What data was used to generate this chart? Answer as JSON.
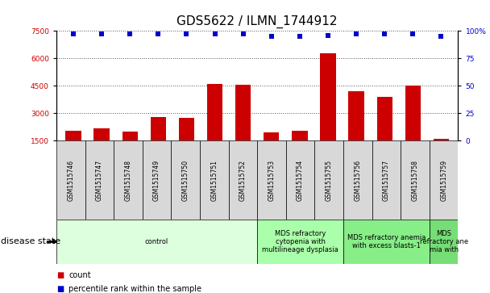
{
  "title": "GDS5622 / ILMN_1744912",
  "samples": [
    "GSM1515746",
    "GSM1515747",
    "GSM1515748",
    "GSM1515749",
    "GSM1515750",
    "GSM1515751",
    "GSM1515752",
    "GSM1515753",
    "GSM1515754",
    "GSM1515755",
    "GSM1515756",
    "GSM1515757",
    "GSM1515758",
    "GSM1515759"
  ],
  "counts": [
    2050,
    2150,
    2000,
    2800,
    2750,
    4600,
    4550,
    1950,
    2050,
    6250,
    4200,
    3900,
    4500,
    1580
  ],
  "percentile_ranks": [
    97,
    97,
    97,
    97,
    97,
    97,
    97,
    95,
    95,
    96,
    97,
    97,
    97,
    95
  ],
  "bar_color": "#cc0000",
  "dot_color": "#0000cc",
  "ylim_left": [
    1500,
    7500
  ],
  "ylim_right": [
    0,
    100
  ],
  "yticks_left": [
    1500,
    3000,
    4500,
    6000,
    7500
  ],
  "yticks_right": [
    0,
    25,
    50,
    75,
    100
  ],
  "grid_color": "#555555",
  "sample_box_color": "#d8d8d8",
  "bg_color": "#ffffff",
  "disease_groups": [
    {
      "label": "control",
      "start": 0,
      "end": 7,
      "color": "#ddffdd"
    },
    {
      "label": "MDS refractory\ncytopenia with\nmultilineage dysplasia",
      "start": 7,
      "end": 10,
      "color": "#aaffaa"
    },
    {
      "label": "MDS refractory anemia\nwith excess blasts-1",
      "start": 10,
      "end": 13,
      "color": "#88ee88"
    },
    {
      "label": "MDS\nrefractory ane\nmia with",
      "start": 13,
      "end": 14,
      "color": "#77dd77"
    }
  ],
  "title_fontsize": 11,
  "tick_fontsize": 6.5,
  "sample_fontsize": 5.5,
  "disease_fontsize": 6,
  "legend_fontsize": 7,
  "disease_state_fontsize": 8
}
